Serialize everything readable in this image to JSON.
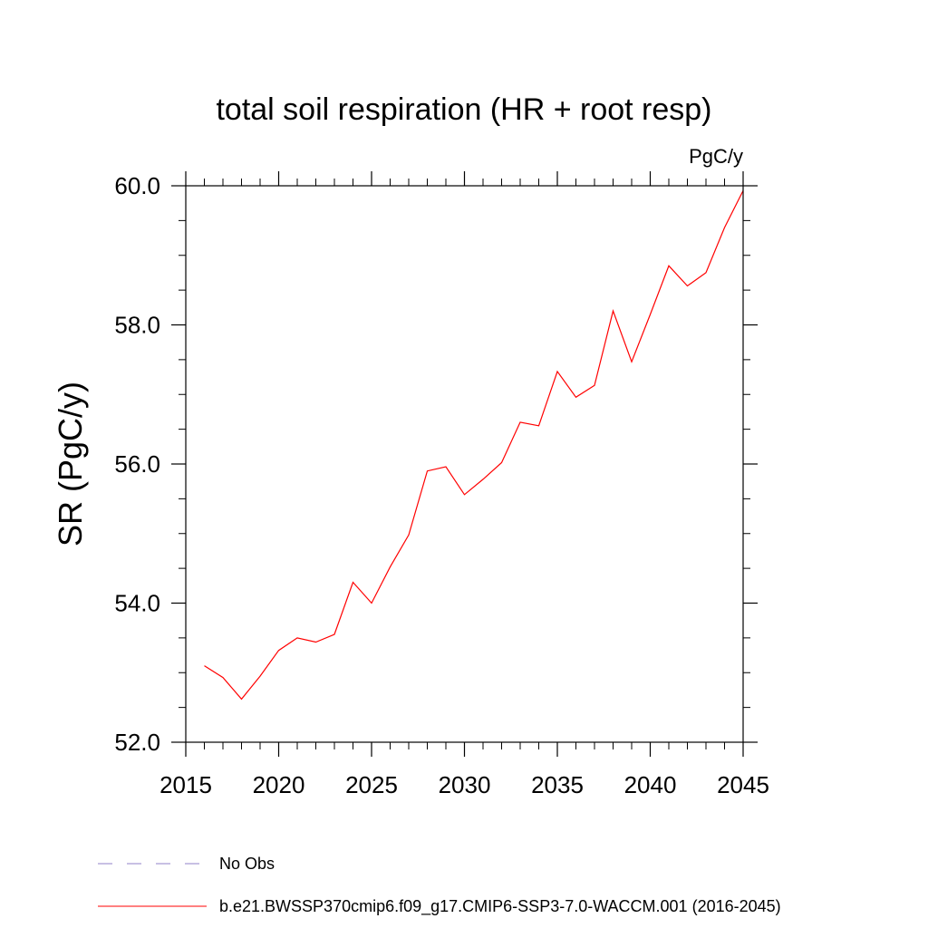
{
  "chart_data": {
    "type": "line",
    "title": "total soil respiration (HR + root resp)",
    "units_label": "PgC/y",
    "xlabel": "",
    "ylabel": "SR  (PgC/y)",
    "xlim": [
      2015,
      2045
    ],
    "ylim": [
      52.0,
      60.0
    ],
    "x_ticks": [
      2015,
      2020,
      2025,
      2030,
      2035,
      2040,
      2045
    ],
    "x_tick_labels": [
      "2015",
      "2020",
      "2025",
      "2030",
      "2035",
      "2040",
      "2045"
    ],
    "y_ticks": [
      52.0,
      54.0,
      56.0,
      58.0,
      60.0
    ],
    "y_tick_labels": [
      "52.0",
      "54.0",
      "56.0",
      "58.0",
      "60.0"
    ],
    "y_minor_step": 0.5,
    "x_minor_step": 1,
    "grid": false,
    "legend_position": "bottom-left",
    "series": [
      {
        "name": "b.e21.BWSSP370cmip6.f09_g17.CMIP6-SSP3-7.0-WACCM.001 (2016-2045)",
        "color": "#ff0000",
        "x": [
          2016,
          2017,
          2018,
          2019,
          2020,
          2021,
          2022,
          2023,
          2024,
          2025,
          2026,
          2027,
          2028,
          2029,
          2030,
          2031,
          2032,
          2033,
          2034,
          2035,
          2036,
          2037,
          2038,
          2039,
          2040,
          2041,
          2042,
          2043,
          2044,
          2045
        ],
        "values": [
          53.1,
          52.93,
          52.62,
          52.95,
          53.32,
          53.5,
          53.44,
          53.55,
          54.3,
          54.0,
          54.52,
          54.98,
          55.9,
          55.96,
          55.56,
          55.78,
          56.02,
          56.6,
          56.55,
          57.33,
          56.96,
          57.13,
          58.2,
          57.47,
          58.15,
          58.85,
          58.56,
          58.75,
          59.4,
          59.93
        ]
      }
    ],
    "legend": [
      {
        "label": "No Obs",
        "style": "dashed",
        "color": "#9080c8"
      },
      {
        "label": "b.e21.BWSSP370cmip6.f09_g17.CMIP6-SSP3-7.0-WACCM.001 (2016-2045)",
        "style": "solid",
        "color": "#ff0000"
      }
    ]
  }
}
